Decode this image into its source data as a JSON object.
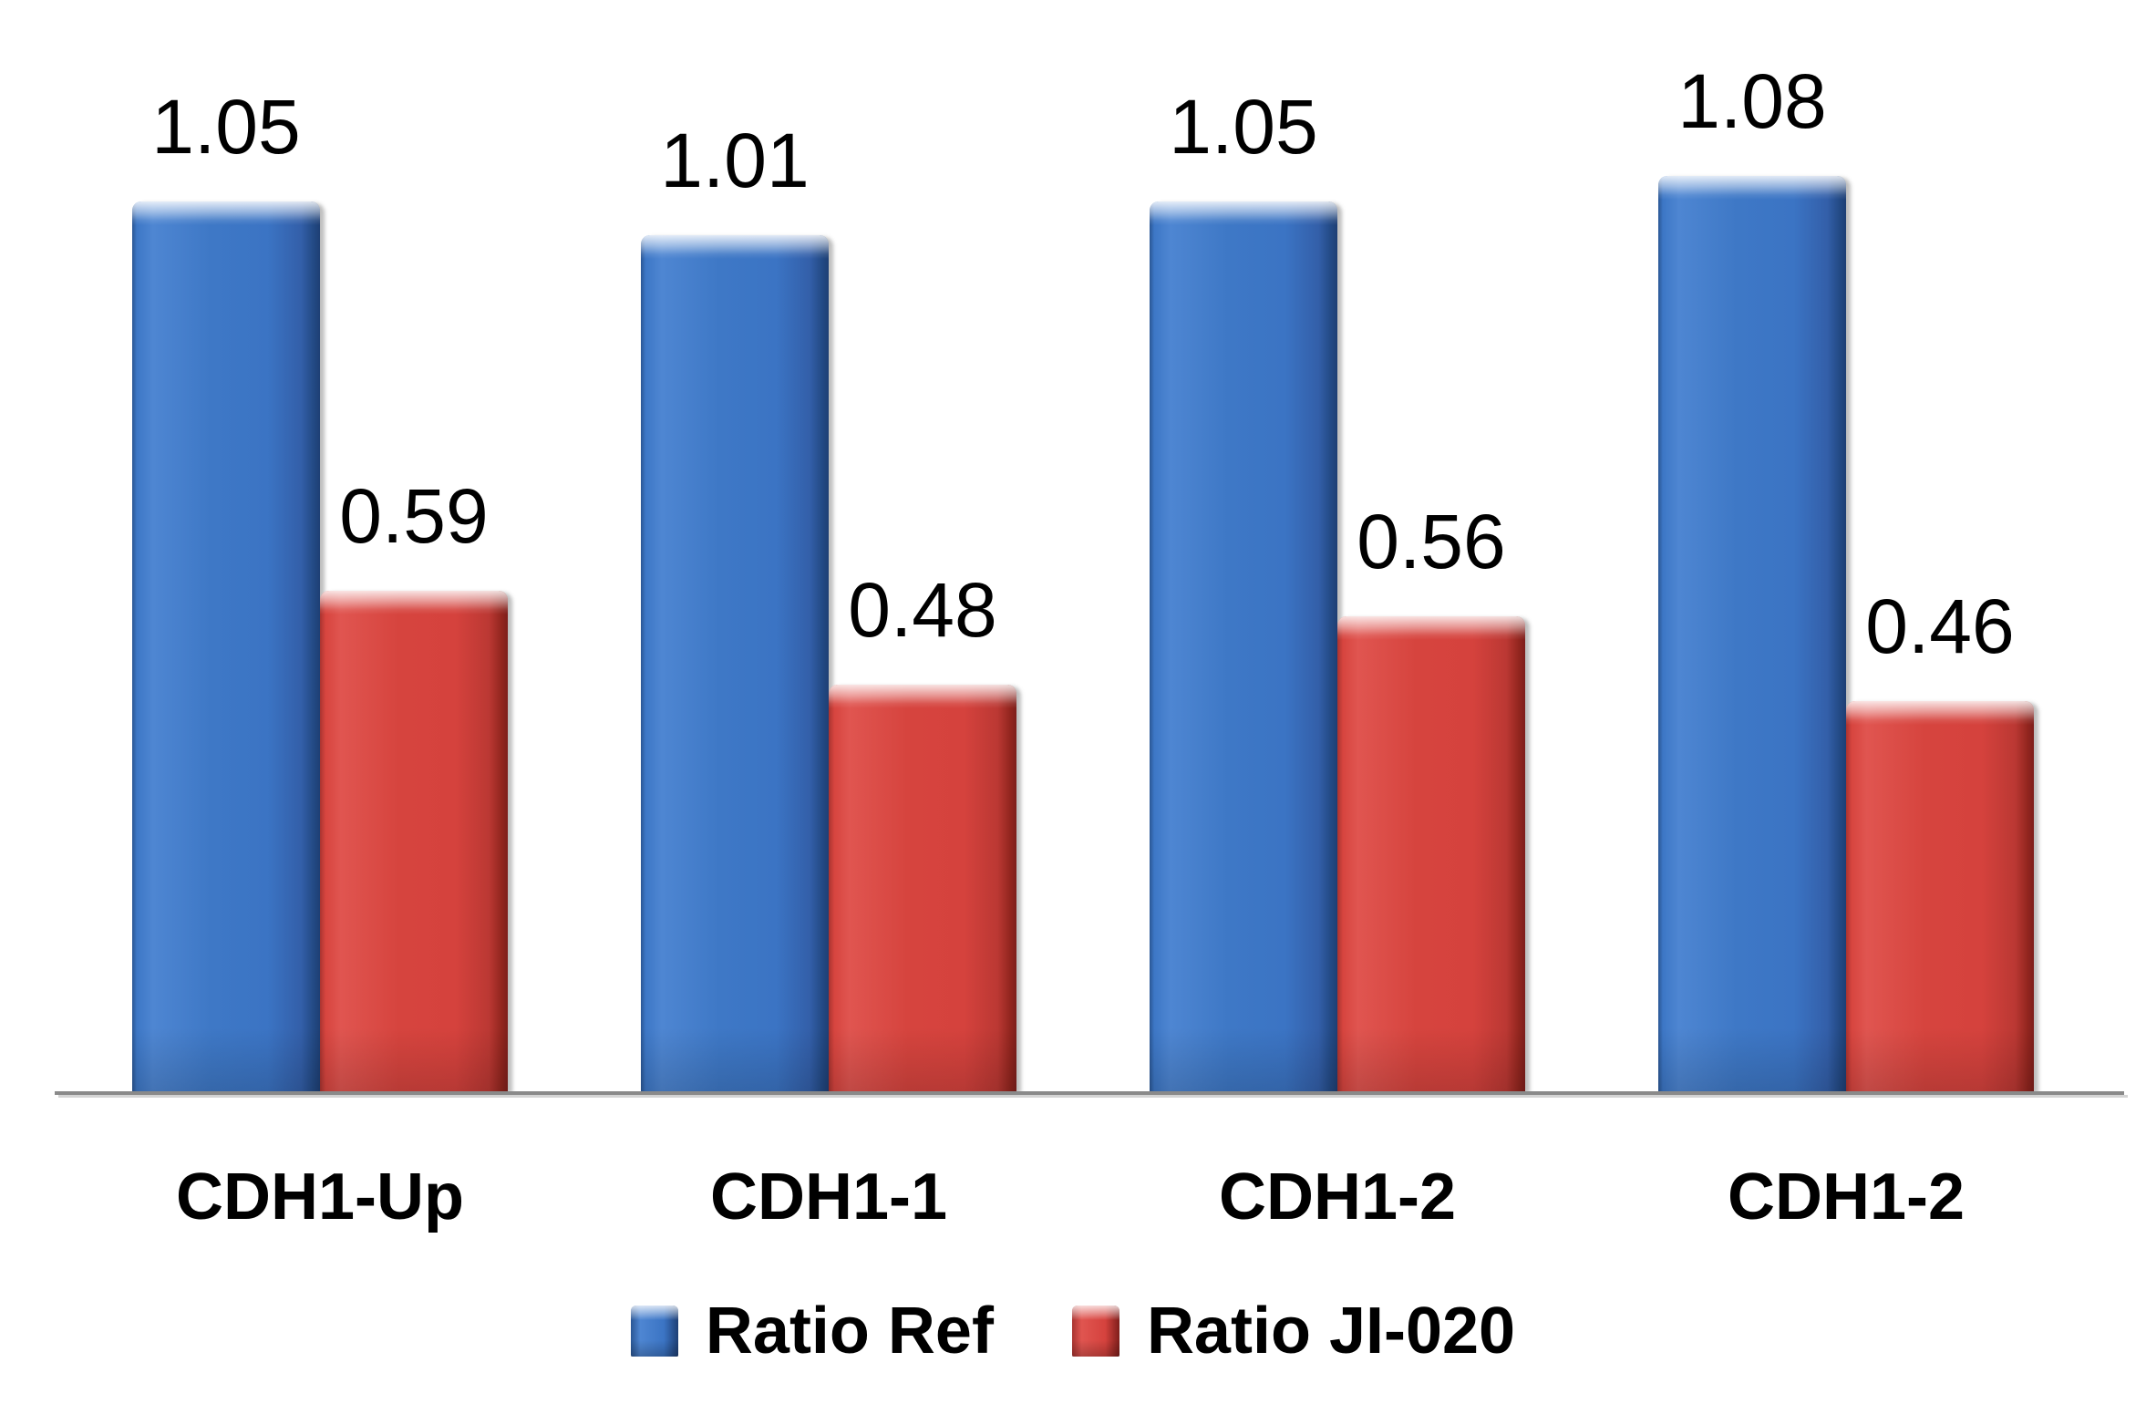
{
  "chart_data": {
    "type": "bar",
    "title": "",
    "xlabel": "",
    "ylabel": "",
    "categories": [
      "CDH1-Up",
      "CDH1-1",
      "CDH1-2",
      "CDH1-2"
    ],
    "series": [
      {
        "name": "Ratio Ref",
        "color": "#3B74C4",
        "values": [
          1.05,
          1.01,
          1.05,
          1.08
        ]
      },
      {
        "name": "Ratio JI-020",
        "color": "#D5423D",
        "values": [
          0.59,
          0.48,
          0.56,
          0.46
        ]
      }
    ],
    "value_labels": {
      "Ratio Ref": [
        "1.05",
        "1.01",
        "1.05",
        "1.08"
      ],
      "Ratio JI-020": [
        "0.59",
        "0.48",
        "0.56",
        "0.46"
      ]
    },
    "ylim": [
      0,
      1.2
    ],
    "y_axis_visible": false,
    "grid": false,
    "legend_position": "bottom",
    "axis_line_color": "#8A8A8A",
    "text_color": "#000000",
    "background_color": "#FFFFFF"
  }
}
